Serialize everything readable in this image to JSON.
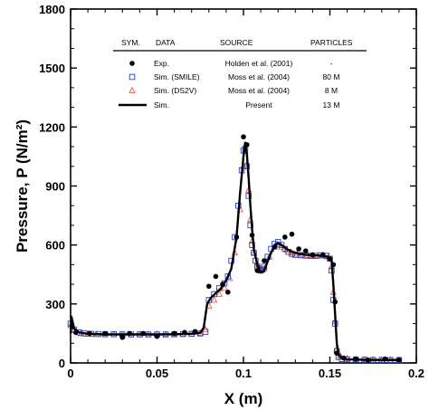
{
  "chart_data": {
    "type": "line",
    "xlabel": "X (m)",
    "ylabel": "Pressure, P (N/m²)",
    "xlim": [
      0,
      0.2
    ],
    "ylim": [
      0,
      1800
    ],
    "x_ticks": [
      "0",
      "0.05",
      "0.1",
      "0.15",
      "0.2"
    ],
    "y_ticks": [
      "0",
      "300",
      "600",
      "900",
      "1200",
      "1500",
      "1800"
    ],
    "grid": false,
    "legend": {
      "placement": "top-center",
      "headers": [
        "SYM.",
        "DATA",
        "SOURCE",
        "PARTICLES"
      ],
      "rows": [
        {
          "data": "Exp.",
          "source": "Holden et al. (2001)",
          "particles": "-"
        },
        {
          "data": "Sim. (SMILE)",
          "source": "Moss et al. (2004)",
          "particles": "80 M"
        },
        {
          "data": "Sim. (DS2V)",
          "source": "Moss et al. (2004)",
          "particles": "8 M"
        },
        {
          "data": "Sim.",
          "source": "Present",
          "particles": "13 M"
        }
      ]
    },
    "series": [
      {
        "name": "Exp.",
        "marker": "filled-circle",
        "color": "#000000",
        "x": [
          0.001,
          0.003,
          0.011,
          0.02,
          0.03,
          0.034,
          0.042,
          0.05,
          0.06,
          0.066,
          0.072,
          0.08,
          0.084,
          0.088,
          0.091,
          0.096,
          0.1,
          0.102,
          0.105,
          0.108,
          0.112,
          0.118,
          0.124,
          0.128,
          0.132,
          0.136,
          0.14,
          0.146,
          0.15,
          0.152,
          0.153,
          0.154,
          0.158,
          0.165,
          0.172,
          0.182,
          0.19
        ],
        "y": [
          185,
          155,
          150,
          150,
          130,
          150,
          150,
          135,
          150,
          155,
          160,
          390,
          440,
          400,
          360,
          640,
          1150,
          1110,
          650,
          470,
          520,
          590,
          640,
          655,
          580,
          570,
          550,
          550,
          530,
          500,
          310,
          50,
          25,
          20,
          15,
          20,
          15
        ]
      },
      {
        "name": "Sim. (SMILE)",
        "marker": "open-square",
        "color": "#1f3fd6",
        "x": [
          0.0,
          0.002,
          0.005,
          0.008,
          0.012,
          0.016,
          0.02,
          0.025,
          0.03,
          0.035,
          0.04,
          0.045,
          0.05,
          0.055,
          0.06,
          0.065,
          0.07,
          0.075,
          0.078,
          0.08,
          0.083,
          0.086,
          0.089,
          0.091,
          0.093,
          0.095,
          0.097,
          0.099,
          0.1,
          0.101,
          0.102,
          0.103,
          0.104,
          0.105,
          0.106,
          0.107,
          0.108,
          0.109,
          0.11,
          0.111,
          0.112,
          0.114,
          0.116,
          0.118,
          0.12,
          0.122,
          0.124,
          0.126,
          0.128,
          0.13,
          0.133,
          0.136,
          0.139,
          0.142,
          0.145,
          0.148,
          0.15,
          0.151,
          0.152,
          0.153,
          0.154,
          0.155,
          0.157,
          0.16,
          0.165,
          0.17,
          0.175,
          0.18,
          0.185,
          0.19
        ],
        "y": [
          200,
          170,
          155,
          150,
          148,
          147,
          146,
          146,
          145,
          145,
          145,
          145,
          145,
          145,
          146,
          147,
          148,
          150,
          158,
          320,
          350,
          380,
          405,
          440,
          520,
          640,
          800,
          980,
          1080,
          1090,
          1000,
          850,
          700,
          600,
          560,
          520,
          490,
          480,
          470,
          475,
          490,
          540,
          580,
          605,
          615,
          600,
          580,
          565,
          555,
          550,
          548,
          546,
          545,
          545,
          548,
          545,
          530,
          470,
          320,
          200,
          60,
          30,
          20,
          18,
          17,
          16,
          15,
          15,
          15,
          15
        ]
      },
      {
        "name": "Sim. (DS2V)",
        "marker": "open-triangle",
        "color": "#e8452a",
        "x": [
          0.0,
          0.002,
          0.006,
          0.01,
          0.015,
          0.02,
          0.025,
          0.03,
          0.035,
          0.04,
          0.045,
          0.05,
          0.055,
          0.06,
          0.065,
          0.07,
          0.075,
          0.078,
          0.08,
          0.083,
          0.086,
          0.089,
          0.092,
          0.095,
          0.098,
          0.1,
          0.101,
          0.102,
          0.103,
          0.104,
          0.105,
          0.106,
          0.108,
          0.11,
          0.112,
          0.115,
          0.118,
          0.12,
          0.122,
          0.125,
          0.128,
          0.131,
          0.134,
          0.137,
          0.14,
          0.143,
          0.146,
          0.149,
          0.151,
          0.152,
          0.153,
          0.154,
          0.156,
          0.16,
          0.165,
          0.17,
          0.175,
          0.18,
          0.185,
          0.19
        ],
        "y": [
          190,
          165,
          150,
          147,
          145,
          145,
          145,
          145,
          145,
          145,
          145,
          146,
          146,
          146,
          147,
          148,
          152,
          170,
          290,
          320,
          350,
          380,
          430,
          560,
          780,
          1000,
          1080,
          1010,
          880,
          730,
          620,
          560,
          500,
          470,
          480,
          540,
          590,
          600,
          590,
          575,
          560,
          555,
          550,
          548,
          547,
          546,
          545,
          540,
          490,
          360,
          210,
          70,
          35,
          22,
          18,
          17,
          16,
          15,
          15,
          15
        ]
      },
      {
        "name": "Sim.",
        "marker": "line",
        "color": "#000000",
        "x": [
          0.0,
          0.0005,
          0.002,
          0.005,
          0.01,
          0.02,
          0.03,
          0.04,
          0.05,
          0.06,
          0.07,
          0.075,
          0.077,
          0.079,
          0.081,
          0.084,
          0.087,
          0.09,
          0.093,
          0.096,
          0.098,
          0.1,
          0.101,
          0.102,
          0.103,
          0.104,
          0.105,
          0.106,
          0.108,
          0.11,
          0.112,
          0.115,
          0.118,
          0.12,
          0.122,
          0.125,
          0.128,
          0.132,
          0.136,
          0.14,
          0.145,
          0.149,
          0.151,
          0.152,
          0.153,
          0.154,
          0.155,
          0.157,
          0.16,
          0.17,
          0.18,
          0.19
        ],
        "y": [
          150,
          235,
          175,
          155,
          148,
          145,
          145,
          145,
          145,
          146,
          148,
          152,
          180,
          300,
          330,
          355,
          380,
          420,
          480,
          640,
          860,
          1050,
          1120,
          1060,
          940,
          800,
          680,
          580,
          500,
          460,
          470,
          540,
          600,
          610,
          600,
          580,
          565,
          555,
          550,
          548,
          546,
          540,
          520,
          400,
          250,
          100,
          40,
          25,
          18,
          16,
          15,
          15
        ]
      }
    ]
  }
}
